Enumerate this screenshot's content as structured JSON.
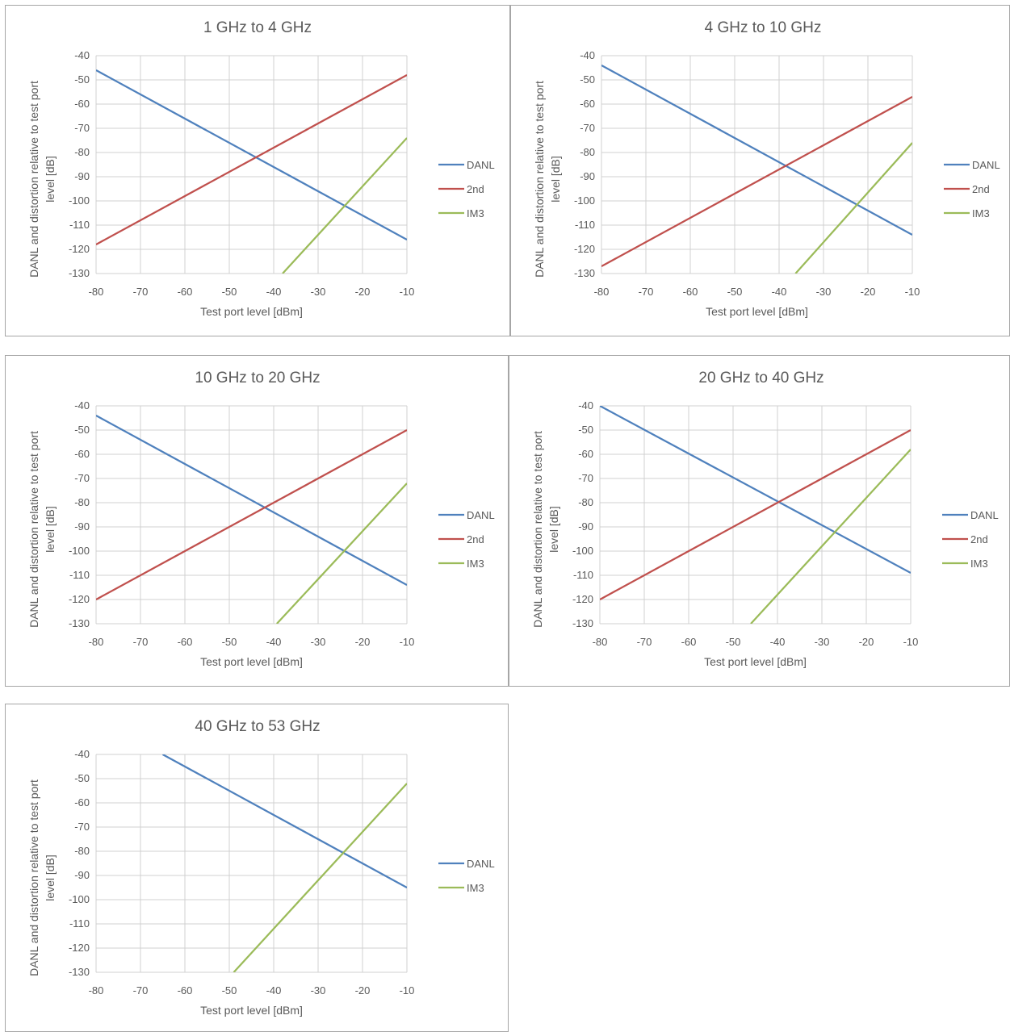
{
  "colors": {
    "DANL": "#4f81bd",
    "2nd": "#c0504d",
    "IM3": "#9bbb59",
    "grid": "#d0d0d0",
    "text": "#595959"
  },
  "chart_data": [
    {
      "type": "line",
      "title": "1 GHz to 4 GHz",
      "xlabel": "Test port level [dBm]",
      "ylabel_lines": [
        "DANL and distortion relative to test port",
        "level [dB]"
      ],
      "xlim": [
        -80,
        -10
      ],
      "ylim": [
        -130,
        -40
      ],
      "xticks": [
        -80,
        -70,
        -60,
        -50,
        -40,
        -30,
        -20,
        -10
      ],
      "yticks": [
        -40,
        -50,
        -60,
        -70,
        -80,
        -90,
        -100,
        -110,
        -120,
        -130
      ],
      "grid": true,
      "legend": "right",
      "series": [
        {
          "name": "DANL",
          "x": [
            -80,
            -10
          ],
          "y": [
            -46,
            -116
          ]
        },
        {
          "name": "2nd",
          "x": [
            -80,
            -10
          ],
          "y": [
            -118,
            -48
          ]
        },
        {
          "name": "IM3",
          "x": [
            -38,
            -10
          ],
          "y": [
            -130,
            -74
          ]
        }
      ]
    },
    {
      "type": "line",
      "title": "4 GHz to 10 GHz",
      "xlabel": "Test port level [dBm]",
      "ylabel_lines": [
        "DANL and distortion relative to test port",
        "level [dB]"
      ],
      "xlim": [
        -80,
        -10
      ],
      "ylim": [
        -130,
        -40
      ],
      "xticks": [
        -80,
        -70,
        -60,
        -50,
        -40,
        -30,
        -20,
        -10
      ],
      "yticks": [
        -40,
        -50,
        -60,
        -70,
        -80,
        -90,
        -100,
        -110,
        -120,
        -130
      ],
      "grid": true,
      "legend": "right",
      "series": [
        {
          "name": "DANL",
          "x": [
            -80,
            -10
          ],
          "y": [
            -44,
            -114
          ]
        },
        {
          "name": "2nd",
          "x": [
            -80,
            -10
          ],
          "y": [
            -127,
            -57
          ]
        },
        {
          "name": "IM3",
          "x": [
            -36.3,
            -10
          ],
          "y": [
            -130,
            -76
          ]
        }
      ]
    },
    {
      "type": "line",
      "title": "10 GHz to 20 GHz",
      "xlabel": "Test port level [dBm]",
      "ylabel_lines": [
        "DANL and distortion relative to test port",
        "level [dB]"
      ],
      "xlim": [
        -80,
        -10
      ],
      "ylim": [
        -130,
        -40
      ],
      "xticks": [
        -80,
        -70,
        -60,
        -50,
        -40,
        -30,
        -20,
        -10
      ],
      "yticks": [
        -40,
        -50,
        -60,
        -70,
        -80,
        -90,
        -100,
        -110,
        -120,
        -130
      ],
      "grid": true,
      "legend": "right",
      "series": [
        {
          "name": "DANL",
          "x": [
            -80,
            -10
          ],
          "y": [
            -44,
            -114
          ]
        },
        {
          "name": "2nd",
          "x": [
            -80,
            -10
          ],
          "y": [
            -120,
            -50
          ]
        },
        {
          "name": "IM3",
          "x": [
            -39.3,
            -10
          ],
          "y": [
            -130,
            -72
          ]
        }
      ]
    },
    {
      "type": "line",
      "title": "20 GHz to 40 GHz",
      "xlabel": "Test port level [dBm]",
      "ylabel_lines": [
        "DANL and distortion relative to test port",
        "level [dB]"
      ],
      "xlim": [
        -80,
        -10
      ],
      "ylim": [
        -130,
        -40
      ],
      "xticks": [
        -80,
        -70,
        -60,
        -50,
        -40,
        -30,
        -20,
        -10
      ],
      "yticks": [
        -40,
        -50,
        -60,
        -70,
        -80,
        -90,
        -100,
        -110,
        -120,
        -130
      ],
      "grid": true,
      "legend": "right",
      "series": [
        {
          "name": "DANL",
          "x": [
            -80,
            -10
          ],
          "y": [
            -40,
            -109
          ]
        },
        {
          "name": "2nd",
          "x": [
            -80,
            -10
          ],
          "y": [
            -120,
            -50
          ]
        },
        {
          "name": "IM3",
          "x": [
            -46,
            -10
          ],
          "y": [
            -130,
            -58
          ]
        }
      ]
    },
    {
      "type": "line",
      "title": "40 GHz to 53 GHz",
      "xlabel": "Test port level [dBm]",
      "ylabel_lines": [
        "DANL and distortion relative to test port",
        "level [dB]"
      ],
      "xlim": [
        -80,
        -10
      ],
      "ylim": [
        -130,
        -40
      ],
      "xticks": [
        -80,
        -70,
        -60,
        -50,
        -40,
        -30,
        -20,
        -10
      ],
      "yticks": [
        -40,
        -50,
        -60,
        -70,
        -80,
        -90,
        -100,
        -110,
        -120,
        -130
      ],
      "grid": true,
      "legend": "right",
      "series": [
        {
          "name": "DANL",
          "x": [
            -65,
            -10
          ],
          "y": [
            -40,
            -95
          ]
        },
        {
          "name": "IM3",
          "x": [
            -49,
            -10
          ],
          "y": [
            -130,
            -52
          ]
        }
      ]
    }
  ]
}
